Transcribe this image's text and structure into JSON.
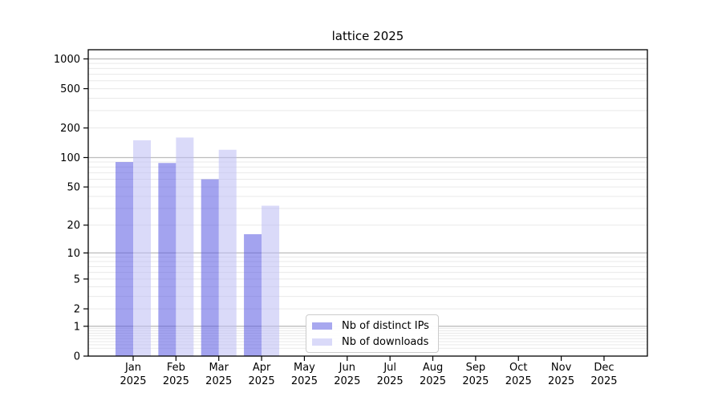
{
  "figure": {
    "title": "lattice 2025",
    "background": "#ffffff"
  },
  "legend": {
    "items": [
      {
        "label": "Nb of distinct IPs",
        "color": "#a8a8ef"
      },
      {
        "label": "Nb of downloads",
        "color": "#dadaf9"
      }
    ]
  },
  "chart_data": {
    "type": "bar",
    "title": "lattice 2025",
    "categories": [
      "Jan 2025",
      "Feb 2025",
      "Mar 2025",
      "Apr 2025",
      "May 2025",
      "Jun 2025",
      "Jul 2025",
      "Aug 2025",
      "Sep 2025",
      "Oct 2025",
      "Nov 2025",
      "Dec 2025"
    ],
    "series": [
      {
        "name": "Nb of distinct IPs",
        "fill": "#5858e2",
        "fill_opacity": 0.55,
        "visible_color": "#a8a8ef",
        "values": [
          90,
          88,
          60,
          16,
          0,
          0,
          0,
          0,
          0,
          0,
          0,
          0
        ]
      },
      {
        "name": "Nb of downloads",
        "fill": "#bcbcf4",
        "fill_opacity": 0.55,
        "visible_color": "#dadaf9",
        "values": [
          150,
          160,
          120,
          32,
          0,
          0,
          0,
          0,
          0,
          0,
          0,
          0
        ]
      }
    ],
    "xlabel": "",
    "ylabel": "",
    "y_scale": "log10(value+1)",
    "ylim": [
      0,
      1000
    ],
    "y_ticks": [
      0,
      1,
      2,
      5,
      10,
      20,
      50,
      100,
      200,
      500,
      1000
    ],
    "y_major_gridlines": [
      1,
      10,
      100,
      1000
    ],
    "y_minor_gridlines": [
      0.2,
      0.3,
      0.4,
      0.5,
      0.6,
      0.7,
      0.8,
      0.9,
      2,
      3,
      4,
      5,
      6,
      7,
      8,
      9,
      20,
      30,
      40,
      50,
      60,
      70,
      80,
      90,
      200,
      300,
      400,
      500,
      600,
      700,
      800,
      900
    ],
    "grid": true,
    "legend_position": "inside lower-center",
    "style": {
      "major_grid_color": "#bdbdbd",
      "minor_grid_color": "#e9e9e9",
      "spine_color": "#000000",
      "tick_label_color": "#000000",
      "tick_label_size": 13
    }
  }
}
